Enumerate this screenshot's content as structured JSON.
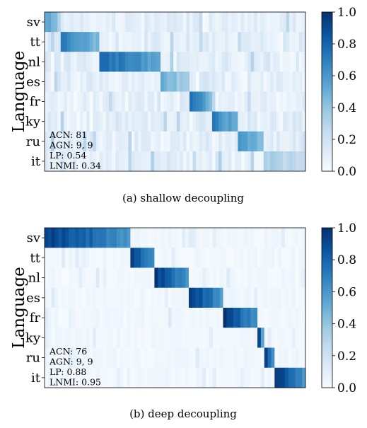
{
  "chart_data": [
    {
      "type": "heatmap",
      "caption": "(a) shallow decoupling",
      "ylabel": "Language",
      "languages": [
        "sv",
        "tt",
        "nl",
        "es",
        "fr",
        "ky",
        "ru",
        "it"
      ],
      "num_columns": 81,
      "color_range": [
        0.0,
        1.0
      ],
      "colorbar_ticks": [
        "1.0",
        "0.8",
        "0.6",
        "0.4",
        "0.2",
        "0.0"
      ],
      "metrics": [
        "ACN: 81",
        "AGN: 9, 9",
        "LP: 0.54",
        "LNMI: 0.34"
      ],
      "assignment_cols": [
        5,
        12,
        19,
        9,
        7,
        8,
        8,
        13
      ],
      "peak": [
        0.55,
        0.7,
        0.8,
        0.5,
        0.75,
        0.72,
        0.65,
        0.35
      ],
      "background": 0.06,
      "spread": 0.13
    },
    {
      "type": "heatmap",
      "caption": "(b) deep decoupling",
      "ylabel": "Language",
      "languages": [
        "sv",
        "tt",
        "nl",
        "es",
        "fr",
        "ky",
        "ru",
        "it"
      ],
      "num_columns": 76,
      "color_range": [
        0.0,
        1.0
      ],
      "colorbar_ticks": [
        "1.0",
        "0.8",
        "0.6",
        "0.4",
        "0.2",
        "0.0"
      ],
      "metrics": [
        "ACN: 76",
        "AGN: 9, 9",
        "LP: 0.88",
        "LNMI: 0.95"
      ],
      "assignment_cols": [
        25,
        7,
        10,
        10,
        10,
        2,
        3,
        9
      ],
      "peak": [
        0.95,
        0.95,
        0.95,
        0.95,
        0.95,
        0.9,
        0.95,
        0.95
      ],
      "background": 0.01,
      "spread": 0.05
    }
  ]
}
